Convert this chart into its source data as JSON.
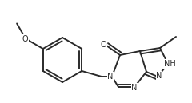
{
  "bg_color": "#ffffff",
  "line_color": "#2a2a2a",
  "line_width": 1.4,
  "font_size": 7.0,
  "figsize": [
    2.4,
    1.29
  ],
  "dpi": 100,
  "xlim": [
    0.0,
    2.4
  ],
  "ylim": [
    0.0,
    1.29
  ]
}
